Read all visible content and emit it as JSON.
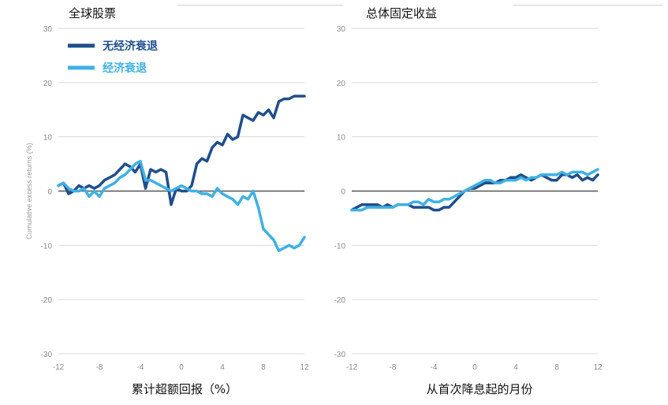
{
  "colors": {
    "no_recession": "#1f4e8c",
    "recession": "#3fb1e3",
    "grid": "#d9d9d9",
    "zero": "#555555"
  },
  "x_label": "累计超额回报（%）",
  "x_label_right": "从首次降息起的月份",
  "chart_data": [
    {
      "type": "line",
      "title": "全球股票",
      "ylabel": "Cumulative excess returns (%)",
      "xlim": [
        -12,
        12
      ],
      "ylim": [
        -30,
        30
      ],
      "xticks": [
        -12,
        -8,
        -4,
        0,
        4,
        8,
        12
      ],
      "yticks": [
        30,
        20,
        10,
        0,
        -10,
        -20,
        -30
      ],
      "legend": "top-left",
      "series": [
        {
          "name": "无经济衰退",
          "color": "#1f4e8c",
          "x": [
            -12,
            -11.5,
            -11,
            -10.5,
            -10,
            -9.5,
            -9,
            -8.5,
            -8,
            -7.5,
            -7,
            -6.5,
            -6,
            -5.5,
            -5,
            -4.5,
            -4,
            -3.5,
            -3,
            -2.5,
            -2,
            -1.5,
            -1,
            -0.5,
            0,
            0.5,
            1,
            1.5,
            2,
            2.5,
            3,
            3.5,
            4,
            4.5,
            5,
            5.5,
            6,
            6.5,
            7,
            7.5,
            8,
            8.5,
            9,
            9.5,
            10,
            10.5,
            11,
            11.5,
            12
          ],
          "y": [
            1,
            1.5,
            -0.5,
            0,
            1,
            0.5,
            1,
            0.5,
            1,
            2,
            2.5,
            3,
            4,
            5,
            4.5,
            3.5,
            5,
            0.5,
            4,
            3.5,
            4,
            3.5,
            -2.5,
            0.5,
            0,
            0,
            1,
            5,
            6,
            5.5,
            8,
            9,
            8.5,
            10.5,
            9.5,
            10,
            14,
            13.5,
            13,
            14.5,
            14,
            15,
            13.5,
            16.5,
            17,
            17,
            17.5,
            17.5,
            17.5
          ]
        },
        {
          "name": "经济衰退",
          "color": "#3fb1e3",
          "x": [
            -12,
            -11.5,
            -11,
            -10.5,
            -10,
            -9.5,
            -9,
            -8.5,
            -8,
            -7.5,
            -7,
            -6.5,
            -6,
            -5.5,
            -5,
            -4.5,
            -4,
            -3.5,
            -3,
            -2.5,
            -2,
            -1.5,
            -1,
            -0.5,
            0,
            0.5,
            1,
            1.5,
            2,
            2.5,
            3,
            3.5,
            4,
            4.5,
            5,
            5.5,
            6,
            6.5,
            7,
            7.5,
            8,
            8.5,
            9,
            9.5,
            10,
            10.5,
            11,
            11.5,
            12
          ],
          "y": [
            1,
            1.5,
            0.5,
            0,
            0,
            0.5,
            -1,
            0,
            -1,
            0.5,
            1,
            1.5,
            2.5,
            3,
            4,
            5,
            5.5,
            2,
            2,
            1.5,
            1,
            0.5,
            0,
            0.5,
            1,
            0.5,
            0,
            0,
            -0.5,
            -0.5,
            -1,
            0.5,
            -0.5,
            -1,
            -1.5,
            -2.5,
            -1,
            -1.5,
            0,
            -3,
            -7,
            -8,
            -9,
            -11,
            -10.5,
            -10,
            -10.5,
            -10,
            -8.5
          ]
        }
      ]
    },
    {
      "type": "line",
      "title": "总体固定收益",
      "xlim": [
        -12,
        12
      ],
      "ylim": [
        -30,
        30
      ],
      "xticks": [
        -12,
        -8,
        -4,
        0,
        4,
        8,
        12
      ],
      "yticks": [
        30,
        20,
        10,
        0,
        -10,
        -20,
        -30
      ],
      "series": [
        {
          "name": "无经济衰退",
          "color": "#1f4e8c",
          "x": [
            -12,
            -11.5,
            -11,
            -10.5,
            -10,
            -9.5,
            -9,
            -8.5,
            -8,
            -7.5,
            -7,
            -6.5,
            -6,
            -5.5,
            -5,
            -4.5,
            -4,
            -3.5,
            -3,
            -2.5,
            -2,
            -1.5,
            -1,
            -0.5,
            0,
            0.5,
            1,
            1.5,
            2,
            2.5,
            3,
            3.5,
            4,
            4.5,
            5,
            5.5,
            6,
            6.5,
            7,
            7.5,
            8,
            8.5,
            9,
            9.5,
            10,
            10.5,
            11,
            11.5,
            12
          ],
          "y": [
            -3.5,
            -3,
            -2.5,
            -2.5,
            -2.5,
            -2.5,
            -3,
            -2.5,
            -3,
            -2.5,
            -2.5,
            -2.5,
            -3,
            -3,
            -3,
            -3,
            -3.5,
            -3.5,
            -3,
            -3,
            -2,
            -1,
            0,
            0.5,
            0.5,
            1,
            1.5,
            1.5,
            1.5,
            2,
            2,
            2.5,
            2.5,
            3,
            2.5,
            2,
            2.5,
            3,
            2.5,
            2,
            2,
            3,
            3,
            2.5,
            3,
            2,
            2.5,
            2,
            3
          ]
        },
        {
          "name": "经济衰退",
          "color": "#3fb1e3",
          "x": [
            -12,
            -11.5,
            -11,
            -10.5,
            -10,
            -9.5,
            -9,
            -8.5,
            -8,
            -7.5,
            -7,
            -6.5,
            -6,
            -5.5,
            -5,
            -4.5,
            -4,
            -3.5,
            -3,
            -2.5,
            -2,
            -1.5,
            -1,
            -0.5,
            0,
            0.5,
            1,
            1.5,
            2,
            2.5,
            3,
            3.5,
            4,
            4.5,
            5,
            5.5,
            6,
            6.5,
            7,
            7.5,
            8,
            8.5,
            9,
            9.5,
            10,
            10.5,
            11,
            11.5,
            12
          ],
          "y": [
            -3.5,
            -3.5,
            -3.5,
            -3,
            -3,
            -3,
            -3,
            -3,
            -3,
            -2.5,
            -2.5,
            -2.5,
            -2,
            -2,
            -2.5,
            -1.5,
            -2,
            -2,
            -1.5,
            -1.5,
            -1,
            -0.5,
            0,
            0.5,
            1,
            1.5,
            2,
            2,
            1.5,
            1.5,
            2,
            2,
            2,
            2.5,
            2,
            2.5,
            2.5,
            3,
            3,
            3,
            3,
            3.5,
            3,
            3.5,
            3.5,
            3.5,
            3,
            3.5,
            4
          ]
        }
      ]
    }
  ]
}
